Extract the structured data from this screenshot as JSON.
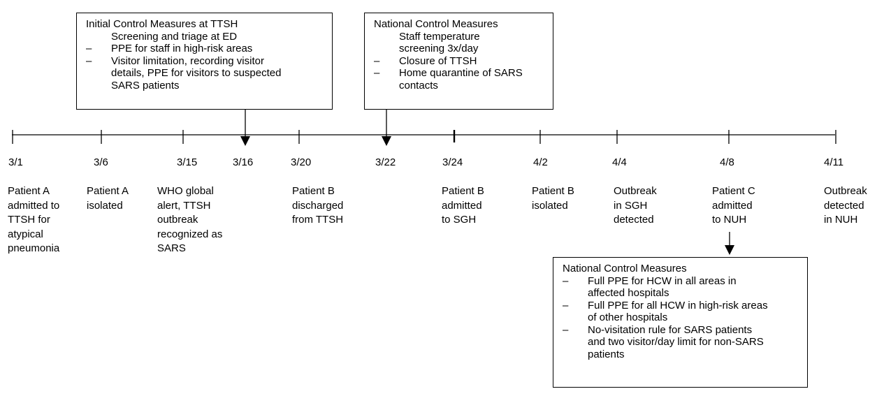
{
  "timeline": {
    "dates": [
      {
        "label": "3/1",
        "x": 0
      },
      {
        "label": "3/6",
        "x": 5
      },
      {
        "label": "3/15",
        "x": 14
      },
      {
        "label": "3/16",
        "x": 15
      },
      {
        "label": "3/20",
        "x": 19
      },
      {
        "label": "3/22",
        "x": 21
      },
      {
        "label": "3/24",
        "x": 23
      },
      {
        "label": "4/2",
        "x": 32
      },
      {
        "label": "4/4",
        "x": 34
      },
      {
        "label": "4/8",
        "x": 38
      },
      {
        "label": "4/11",
        "x": 41
      }
    ],
    "events": [
      {
        "date": "3/1",
        "lines": [
          "Patient A",
          "admitted to",
          "TTSH for",
          "atypical",
          "pneumonia"
        ]
      },
      {
        "date": "3/6",
        "lines": [
          "Patient A",
          "isolated"
        ]
      },
      {
        "date": "3/15",
        "lines": [
          "WHO global",
          "alert, TTSH",
          "outbreak",
          "recognized as",
          "SARS"
        ]
      },
      {
        "date": "3/20",
        "lines": [
          "Patient B",
          "discharged",
          "from TTSH"
        ]
      },
      {
        "date": "3/24",
        "lines": [
          "Patient B",
          "admitted",
          "to SGH"
        ]
      },
      {
        "date": "4/2",
        "lines": [
          "Patient B",
          "isolated"
        ]
      },
      {
        "date": "4/4",
        "lines": [
          "Outbreak",
          "in SGH",
          "detected"
        ]
      },
      {
        "date": "4/8",
        "lines": [
          "Patient C",
          "admitted",
          "to NUH"
        ]
      },
      {
        "date": "4/11",
        "lines": [
          "Outbreak",
          "detected",
          "in NUH"
        ]
      }
    ]
  },
  "boxes": [
    {
      "id": "initial",
      "title": "Initial Control Measures at TTSH",
      "items": [
        {
          "dash": "",
          "lines": [
            "Screening and triage at ED"
          ]
        },
        {
          "dash": "–",
          "lines": [
            "PPE for staff in high-risk areas"
          ]
        },
        {
          "dash": "–",
          "lines": [
            "Visitor limitation, recording visitor",
            "details, PPE for visitors to suspected",
            "SARS patients"
          ]
        }
      ]
    },
    {
      "id": "national1",
      "title": "National Control Measures",
      "items": [
        {
          "dash": "",
          "lines": [
            "Staff temperature",
            "screening 3x/day"
          ]
        },
        {
          "dash": "–",
          "lines": [
            "Closure of TTSH"
          ]
        },
        {
          "dash": "–",
          "lines": [
            "Home quarantine of SARS",
            "contacts"
          ]
        }
      ]
    },
    {
      "id": "national2",
      "title": "National Control Measures",
      "items": [
        {
          "dash": "–",
          "lines": [
            "Full PPE for HCW in all areas in",
            "affected hospitals"
          ]
        },
        {
          "dash": "–",
          "lines": [
            "Full PPE for all HCW in high-risk areas",
            "of other hospitals"
          ]
        },
        {
          "dash": "–",
          "lines": [
            "No-visitation rule for SARS patients",
            "and two visitor/day limit for non-SARS",
            "patients"
          ]
        }
      ]
    }
  ],
  "colors": {
    "line": "#000000",
    "text": "#000000",
    "background": "#ffffff"
  }
}
